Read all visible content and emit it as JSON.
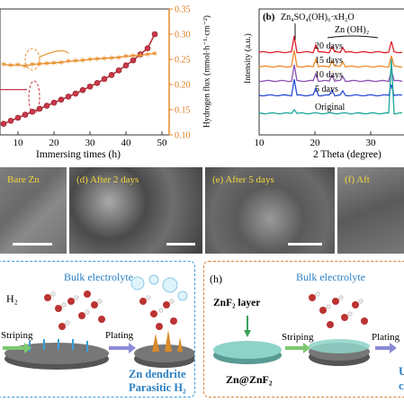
{
  "panel_a": {
    "xlabel": "Immersing times (h)",
    "ylabel_right": "Hydrogen flux (mmol·h⁻¹·cm⁻²)",
    "xticks": [
      "10",
      "20",
      "30",
      "40",
      "50"
    ],
    "yticks_right": [
      "0.35",
      "0.30",
      "0.25",
      "0.20",
      "0.15",
      "0.10"
    ]
  },
  "panel_b": {
    "label": "(b)",
    "xlabel": "2 Theta (degree)",
    "ylabel": "Intensity (a.u.)",
    "xticks": [
      "10",
      "20",
      "30"
    ],
    "phase1": "Zn₄SO₄(OH)₆·xH₂O",
    "phase2": "Zn (OH)₂",
    "traces": [
      "20 days",
      "15 days",
      "10 days",
      "5 days",
      "Original"
    ],
    "colors": [
      "#e0202a",
      "#ee8a2a",
      "#8a4fb0",
      "#2a4fd6",
      "#1aa69a"
    ]
  },
  "chart_data": [
    {
      "type": "line",
      "xlabel": "Immersing times (h)",
      "ylabel": "Hydrogen flux (mmol·h⁻¹·cm⁻²)",
      "xlim": [
        5,
        52
      ],
      "ylim": [
        0.1,
        0.35
      ],
      "series": [
        {
          "x": [
            6,
            8,
            10,
            12,
            14,
            16,
            18,
            20,
            22,
            24,
            26,
            28,
            30,
            32,
            34,
            36,
            38,
            40,
            42,
            44,
            46,
            48
          ],
          "values": [
            0.122,
            0.128,
            0.134,
            0.14,
            0.146,
            0.152,
            0.158,
            0.164,
            0.17,
            0.176,
            0.182,
            0.189,
            0.196,
            0.203,
            0.211,
            0.219,
            0.228,
            0.238,
            0.248,
            0.26,
            0.272,
            0.3
          ]
        },
        {
          "x": [
            6,
            8,
            10,
            12,
            14,
            16,
            18,
            20,
            22,
            24,
            26,
            28,
            30,
            32,
            34,
            36,
            38,
            40,
            42,
            44,
            46,
            48
          ],
          "values": [
            0.24,
            0.238,
            0.239,
            0.237,
            0.24,
            0.241,
            0.242,
            0.243,
            0.244,
            0.246,
            0.247,
            0.248,
            0.25,
            0.251,
            0.252,
            0.253,
            0.254,
            0.256,
            0.257,
            0.258,
            0.26,
            0.262
          ]
        }
      ]
    }
  ],
  "sem": [
    {
      "label": "Bare Zn"
    },
    {
      "label": "(d)   After 2 days"
    },
    {
      "label": "(e)   After 5 days"
    },
    {
      "label": "(f)   Aft"
    }
  ],
  "panel_g": {
    "h2": "H₂",
    "electrolyte": "Bulk electrolyte",
    "striping": "Striping",
    "plating": "Plating",
    "result1": "Zn dendrite",
    "result2": "Parasitic H₂"
  },
  "panel_h": {
    "label": "(h)",
    "electrolyte": "Bulk electrolyte",
    "layer": "ZnF₂ layer",
    "striping": "Striping",
    "plating": "Plating",
    "anode": "Zn@ZnF₂",
    "cut1": "U",
    "cut2": "c"
  }
}
